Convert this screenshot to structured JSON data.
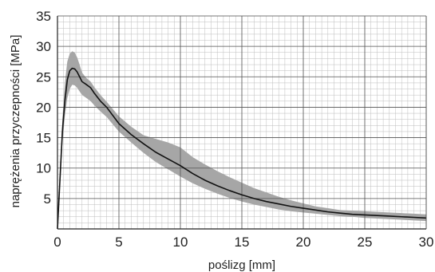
{
  "chart_data": {
    "type": "line",
    "xlabel": "poślizg [mm]",
    "ylabel": "naprężenia przyczepności [MPa]",
    "xlim": [
      0,
      30
    ],
    "ylim": [
      0,
      35
    ],
    "xticks": [
      0,
      5,
      10,
      15,
      20,
      25,
      30
    ],
    "yticks": [
      5,
      10,
      15,
      20,
      25,
      30,
      35
    ],
    "minor_grid_step_x": 0.5,
    "minor_grid_step_y": 1,
    "grid": true,
    "colors": {
      "mean_line": "#111111",
      "band": "#a6a6a6",
      "major_grid": "#555555",
      "minor_grid": "#bdbdbd"
    },
    "series": [
      {
        "role": "mean",
        "x": [
          0,
          0.2,
          0.4,
          0.6,
          0.8,
          1.0,
          1.2,
          1.4,
          1.6,
          1.8,
          2.0,
          2.3,
          2.7,
          3.0,
          3.5,
          4.0,
          5.0,
          6.0,
          7.0,
          8.0,
          9.0,
          10.0,
          11.0,
          12.0,
          13.0,
          14.0,
          15.0,
          16.0,
          17.0,
          18.0,
          19.0,
          20.0,
          21.0,
          22.0,
          23.0,
          24.0,
          25.0,
          26.0,
          27.0,
          28.0,
          29.0,
          30.0
        ],
        "y": [
          0,
          8,
          16,
          21,
          24.5,
          26.0,
          26.4,
          26.3,
          25.8,
          25.0,
          24.2,
          23.8,
          23.2,
          22.3,
          21.0,
          20.0,
          17.3,
          15.5,
          14.0,
          12.6,
          11.5,
          10.4,
          9.1,
          8.0,
          7.1,
          6.3,
          5.6,
          5.0,
          4.5,
          4.1,
          3.7,
          3.4,
          3.1,
          2.8,
          2.6,
          2.4,
          2.3,
          2.2,
          2.1,
          2.0,
          1.9,
          1.8
        ]
      },
      {
        "role": "band-upper",
        "x": [
          0,
          0.2,
          0.4,
          0.6,
          0.8,
          1.0,
          1.2,
          1.4,
          1.6,
          1.8,
          2.0,
          2.3,
          2.7,
          3.0,
          3.5,
          4.0,
          5.0,
          6.0,
          7.0,
          8.0,
          9.0,
          10.0,
          11.0,
          12.0,
          13.0,
          14.0,
          15.0,
          16.0,
          17.0,
          18.0,
          19.0,
          20.0,
          21.0,
          22.0,
          23.0,
          24.0,
          25.0,
          26.0,
          27.0,
          28.0,
          29.0,
          30.0
        ],
        "y": [
          0,
          9,
          18,
          24,
          27.5,
          28.8,
          29.2,
          29.0,
          28.2,
          27.0,
          25.7,
          24.9,
          24.2,
          23.3,
          22.0,
          20.9,
          18.5,
          16.8,
          15.4,
          14.8,
          14.2,
          13.4,
          11.8,
          10.6,
          9.5,
          8.5,
          7.6,
          6.7,
          6.0,
          5.3,
          4.7,
          4.2,
          3.7,
          3.4,
          3.1,
          3.0,
          2.9,
          2.8,
          2.7,
          2.6,
          2.5,
          2.4
        ]
      },
      {
        "role": "band-lower",
        "x": [
          0,
          0.2,
          0.4,
          0.6,
          0.8,
          1.0,
          1.2,
          1.4,
          1.6,
          1.8,
          2.0,
          2.3,
          2.7,
          3.0,
          3.5,
          4.0,
          5.0,
          6.0,
          7.0,
          8.0,
          9.0,
          10.0,
          11.0,
          12.0,
          13.0,
          14.0,
          15.0,
          16.0,
          17.0,
          18.0,
          19.0,
          20.0,
          21.0,
          22.0,
          23.0,
          24.0,
          25.0,
          26.0,
          27.0,
          28.0,
          29.0,
          30.0
        ],
        "y": [
          0,
          7,
          14,
          18.5,
          21.5,
          23.0,
          23.7,
          23.6,
          23.2,
          22.6,
          22.0,
          21.6,
          21.0,
          20.3,
          19.3,
          18.4,
          16.0,
          14.2,
          12.5,
          11.0,
          9.8,
          8.6,
          7.5,
          6.6,
          5.8,
          5.1,
          4.5,
          4.0,
          3.6,
          3.2,
          2.9,
          2.7,
          2.5,
          2.3,
          2.1,
          2.0,
          1.8,
          1.7,
          1.6,
          1.5,
          1.4,
          1.3
        ]
      }
    ]
  }
}
